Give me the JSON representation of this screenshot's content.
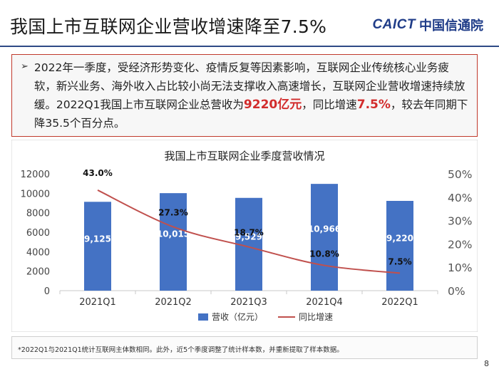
{
  "slide": {
    "title": "我国上市互联网企业营收增速降至7.5%",
    "logo_en": "CAICT",
    "logo_cn": "中国信通院",
    "page_number": "8"
  },
  "summary": {
    "bullet": "➢",
    "text_1": "2022年一季度，受经济形势变化、疫情反复等因素影响，互联网企业传统核心业务疲软，新兴业务、海外收入占比较小尚无法支撑收入高速增长，互联网企业营收增速持续放缓。2022Q1我国上市互联网企业总营收为",
    "highlight_1": "9220亿元",
    "text_2": "，同比增速",
    "highlight_2": "7.5%",
    "text_3": "，较去年同期下降35.5个百分点。"
  },
  "colors": {
    "bar": "#4472c4",
    "line": "#c0504d",
    "highlight": "#d22c2c",
    "title_rule": "#2e4a86"
  },
  "chart_data": {
    "type": "bar",
    "title": "我国上市互联网企业季度营收情况",
    "categories": [
      "2021Q1",
      "2021Q2",
      "2021Q3",
      "2021Q4",
      "2022Q1"
    ],
    "series": [
      {
        "name": "营收（亿元）",
        "type": "bar",
        "axis": "left",
        "values": [
          9125,
          10015,
          9529,
          10966,
          9220
        ],
        "labels": [
          "9,125",
          "10,015",
          "9,529",
          "10,966",
          "9,220"
        ]
      },
      {
        "name": "同比增速",
        "type": "line",
        "axis": "right",
        "values": [
          43.0,
          27.3,
          18.7,
          10.8,
          7.5
        ],
        "labels": [
          "43.0%",
          "27.3%",
          "18.7%",
          "10.8%",
          "7.5%"
        ]
      }
    ],
    "ylim_left": [
      0,
      12000
    ],
    "yticks_left": [
      "0",
      "2000",
      "4000",
      "6000",
      "8000",
      "10000",
      "12000"
    ],
    "ylim_right": [
      0,
      50
    ],
    "yticks_right": [
      "0%",
      "10%",
      "20%",
      "30%",
      "40%",
      "50%"
    ],
    "legend": "bottom",
    "grid": false
  },
  "footnote": "*2022Q1与2021Q1统计互联网主体数相同。此外，近5个季度调整了统计样本数，并重新提取了样本数据。"
}
